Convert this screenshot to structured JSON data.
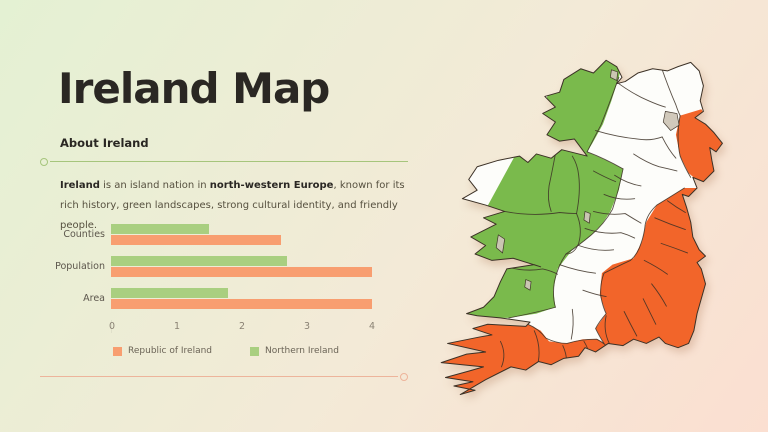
{
  "page": {
    "title": "Ireland Map"
  },
  "about": {
    "heading": "About Ireland",
    "intro": {
      "bold1": "Ireland",
      "text1": " is an island nation in ",
      "bold2": "north-western Europe",
      "text2": ", known for its rich history, green landscapes, strong cultural identity, and friendly people."
    }
  },
  "chart_data": {
    "type": "bar",
    "orientation": "horizontal",
    "categories": [
      "Counties",
      "Population",
      "Area"
    ],
    "series": [
      {
        "name": "Northern Ireland",
        "color": "#a9cf80",
        "values": [
          1.5,
          2.7,
          1.8
        ]
      },
      {
        "name": "Republic of Ireland",
        "color": "#f89e70",
        "values": [
          2.6,
          4.0,
          4.0
        ]
      }
    ],
    "xlim": [
      0,
      4
    ],
    "xticks": [
      0,
      1,
      2,
      3,
      4
    ],
    "grid": false,
    "legend_position": "bottom",
    "legend": [
      {
        "label": "Republic of Ireland",
        "color": "#f89e70"
      },
      {
        "label": "Northern Ireland",
        "color": "#a9cf80"
      }
    ]
  },
  "map": {
    "name": "ireland-county-map",
    "colors": {
      "green": "#7aba4c",
      "white": "#fdfdfa",
      "orange": "#f2652a",
      "lake": "#cfc7b8",
      "border": "#3c3126"
    }
  },
  "theme": {
    "background_start": "#e4f1d3",
    "background_mid": "#f3ead7",
    "background_end": "#fbdfd1",
    "divider_green": "#a6c57c",
    "divider_orange": "#edb49b",
    "title_color": "#2a2723",
    "text_color": "#56503f",
    "label_color": "#5c564c",
    "tick_color": "#8a8274",
    "legend_text": "#6b6457"
  }
}
